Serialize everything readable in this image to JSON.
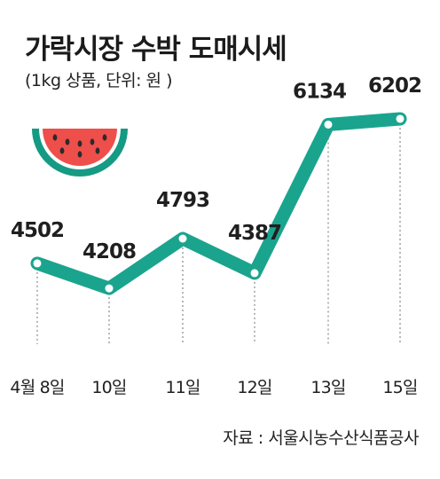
{
  "title": "가락시장 수박 도매시세",
  "subtitle": "(1kg 상품, 단위: 원 )",
  "source": "자료 : 서울시농수산식품공사",
  "colors": {
    "line": "#1aa48e",
    "marker_fill": "#ffffff",
    "dash": "#9a9a9a",
    "text": "#1f1f1f",
    "melon_rind": "#159a84",
    "melon_white": "#ffffff",
    "melon_flesh": "#ee4f4b",
    "melon_seed": "#2b2b2b"
  },
  "icon": "watermelon-slice-icon",
  "chart_data": {
    "type": "line",
    "categories": [
      "4월 8일",
      "10일",
      "11일",
      "12일",
      "13일",
      "15일"
    ],
    "series": [
      {
        "values": [
          4502,
          4208,
          4793,
          4387,
          6134,
          6202
        ]
      }
    ],
    "data_labels": [
      "4502",
      "4208",
      "4793",
      "4387",
      "6134",
      "6202"
    ],
    "title": "가락시장 수박 도매시세",
    "xlabel": "",
    "ylabel": "",
    "ylim": [
      4000,
      6400
    ],
    "grid": false,
    "legend": "none"
  }
}
